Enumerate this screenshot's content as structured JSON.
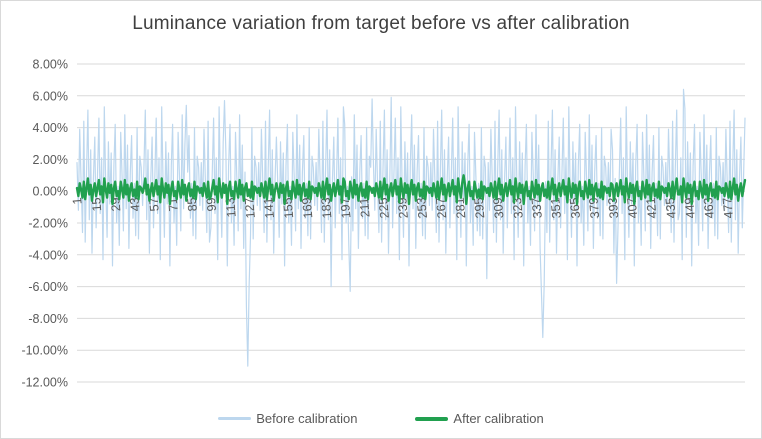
{
  "chart_data": {
    "type": "line",
    "title": "Luminance variation from target before vs after calibration",
    "xlabel": "",
    "ylabel": "",
    "units": "percent",
    "n_points": 490,
    "x_start": 1,
    "x_tick_step": 14,
    "x_tick_labels": [
      1,
      15,
      29,
      43,
      57,
      71,
      85,
      99,
      113,
      127,
      141,
      155,
      169,
      183,
      197,
      211,
      225,
      239,
      253,
      267,
      281,
      295,
      309,
      323,
      337,
      351,
      365,
      379,
      393,
      407,
      421,
      435,
      449,
      463,
      477
    ],
    "ylim": [
      -12,
      8
    ],
    "y_ticks": [
      {
        "value": 8,
        "label": "8.00%"
      },
      {
        "value": 6,
        "label": "6.00%"
      },
      {
        "value": 4,
        "label": "4.00%"
      },
      {
        "value": 2,
        "label": "2.00%"
      },
      {
        "value": 0,
        "label": "0.00%"
      },
      {
        "value": -2,
        "label": "-2.00%"
      },
      {
        "value": -4,
        "label": "-4.00%"
      },
      {
        "value": -6,
        "label": "-6.00%"
      },
      {
        "value": -8,
        "label": "-8.00%"
      },
      {
        "value": -10,
        "label": "-10.00%"
      },
      {
        "value": -12,
        "label": "-12.00%"
      }
    ],
    "grid": true,
    "gridline_color": "#d9d9d9",
    "legend_position": "bottom",
    "text_color": "#595959",
    "title_color": "#3f3f3f",
    "series": [
      {
        "name": "Before calibration",
        "color": "#bdd7ee",
        "stroke_width": 1.2,
        "values": [
          1.8,
          -1.2,
          3.9,
          0.6,
          -2.6,
          4.4,
          -3.2,
          1.4,
          5.1,
          -1.8,
          2.6,
          -3.9,
          0.8,
          3.4,
          -2.3,
          1.0,
          4.6,
          -1.4,
          2.1,
          -4.3,
          5.3,
          0.4,
          -2.9,
          3.1,
          -0.8,
          2.4,
          -4.7,
          1.6,
          4.2,
          -2.0,
          0.3,
          -3.4,
          3.7,
          0.9,
          -2.5,
          4.8,
          -1.1,
          2.9,
          -3.6,
          1.2,
          3.5,
          -1.7,
          0.5,
          -2.8,
          4.0,
          -3.0,
          2.2,
          1.5,
          -0.9,
          1.4,
          5.1,
          -1.8,
          2.6,
          -3.9,
          0.8,
          3.4,
          -2.3,
          1.0,
          4.6,
          -1.4,
          2.1,
          -4.3,
          5.3,
          0.4,
          -2.9,
          3.1,
          -0.8,
          2.4,
          -4.7,
          1.6,
          4.2,
          -2.0,
          0.3,
          -3.4,
          3.7,
          0.9,
          -2.5,
          4.8,
          -1.1,
          2.9,
          5.4,
          1.2,
          3.5,
          -1.7,
          0.5,
          -2.8,
          4.0,
          -3.0,
          2.2,
          1.5,
          -0.9,
          1.8,
          -1.2,
          3.9,
          0.6,
          -2.6,
          4.4,
          -3.2,
          -2.3,
          1.0,
          4.6,
          -1.4,
          2.1,
          -4.3,
          5.3,
          0.4,
          -2.9,
          3.1,
          5.7,
          2.4,
          -4.7,
          1.6,
          4.2,
          -2.0,
          0.3,
          -3.4,
          3.7,
          0.9,
          -2.5,
          4.8,
          -1.1,
          2.9,
          -3.6,
          1.2,
          -7.2,
          -11.0,
          -6.0,
          -2.8,
          4.0,
          -3.0,
          2.2,
          1.5,
          -0.9,
          1.8,
          -1.2,
          3.9,
          0.6,
          -2.6,
          4.4,
          -3.2,
          1.4,
          5.1,
          -1.8,
          2.6,
          -3.9,
          0.8,
          3.4,
          0.4,
          -2.9,
          3.1,
          -0.8,
          2.4,
          -4.7,
          1.6,
          4.2,
          -2.0,
          0.3,
          -3.4,
          3.7,
          0.9,
          -2.5,
          4.8,
          -1.1,
          2.9,
          -3.6,
          1.2,
          3.5,
          -1.7,
          0.5,
          -2.8,
          4.0,
          -3.0,
          2.2,
          1.5,
          -0.9,
          1.8,
          -1.2,
          3.9,
          0.6,
          -2.6,
          4.4,
          -3.2,
          1.4,
          5.1,
          -1.8,
          2.6,
          -6.0,
          0.8,
          3.4,
          -2.3,
          1.0,
          4.6,
          -1.4,
          2.1,
          -4.3,
          5.3,
          4.2,
          -2.0,
          0.3,
          -3.4,
          -6.3,
          0.9,
          -2.5,
          4.8,
          -1.1,
          2.9,
          -3.6,
          1.2,
          3.5,
          -1.7,
          0.5,
          -2.8,
          4.0,
          -3.0,
          2.2,
          1.5,
          5.8,
          1.8,
          -1.2,
          3.9,
          0.6,
          -2.6,
          4.4,
          -3.2,
          1.4,
          5.1,
          -1.8,
          2.6,
          -3.9,
          0.8,
          5.9,
          -2.3,
          1.0,
          4.6,
          -1.4,
          2.1,
          -4.3,
          5.3,
          0.4,
          -2.9,
          3.1,
          -0.8,
          2.4,
          -4.7,
          1.6,
          4.8,
          -1.1,
          2.9,
          -3.6,
          1.2,
          3.5,
          -1.7,
          0.5,
          -2.8,
          4.0,
          -3.0,
          2.2,
          1.5,
          -0.9,
          1.8,
          -1.2,
          3.9,
          0.6,
          -2.6,
          4.4,
          -3.2,
          1.4,
          5.1,
          -1.8,
          2.6,
          -3.9,
          0.8,
          3.4,
          -2.3,
          1.0,
          4.6,
          -1.4,
          2.1,
          -4.3,
          5.3,
          0.4,
          -2.9,
          3.1,
          -0.8,
          2.4,
          -4.7,
          1.6,
          4.2,
          -2.0,
          0.3,
          -3.4,
          3.7,
          0.9,
          -2.5,
          0.5,
          -2.8,
          4.0,
          -3.0,
          2.2,
          1.5,
          -5.5,
          1.8,
          -1.2,
          3.9,
          0.6,
          -2.6,
          4.4,
          -3.2,
          1.4,
          5.1,
          -1.8,
          2.6,
          -3.9,
          0.8,
          3.4,
          -2.3,
          1.0,
          4.6,
          -1.4,
          2.1,
          -4.3,
          5.3,
          0.4,
          -2.9,
          3.1,
          -0.8,
          2.4,
          -4.7,
          1.6,
          4.2,
          -2.0,
          0.3,
          -3.4,
          3.7,
          0.9,
          -2.5,
          4.8,
          -1.1,
          2.9,
          -3.6,
          -6.5,
          -9.2,
          -5.8,
          0.6,
          -2.6,
          4.4,
          -3.2,
          1.4,
          5.1,
          -1.8,
          2.6,
          -3.9,
          0.8,
          3.4,
          -2.3,
          1.0,
          4.6,
          -1.4,
          2.1,
          -4.3,
          5.3,
          0.4,
          -2.9,
          3.1,
          -0.8,
          2.4,
          -4.7,
          1.6,
          4.2,
          -2.0,
          0.3,
          -3.4,
          3.7,
          0.9,
          -2.5,
          4.8,
          -1.1,
          2.9,
          -3.6,
          1.2,
          3.5,
          -1.7,
          0.5,
          -2.8,
          4.0,
          -3.0,
          2.2,
          1.5,
          -0.9,
          1.8,
          -1.2,
          3.9,
          2.6,
          -3.9,
          0.8,
          -5.8,
          -2.3,
          1.0,
          4.6,
          -1.4,
          2.1,
          -4.3,
          5.3,
          0.4,
          -2.9,
          3.1,
          -0.8,
          2.4,
          -4.7,
          1.6,
          4.2,
          -2.0,
          0.3,
          -3.4,
          3.7,
          0.9,
          -2.5,
          4.8,
          -1.1,
          2.9,
          -3.6,
          1.2,
          3.5,
          -1.7,
          0.5,
          -2.8,
          4.0,
          -3.0,
          2.2,
          1.5,
          -0.9,
          1.8,
          -1.2,
          3.9,
          0.6,
          -2.6,
          4.4,
          -3.2,
          1.4,
          5.1,
          -1.8,
          -1.4,
          2.1,
          -4.3,
          6.4,
          5.2,
          -2.9,
          3.1,
          -0.8,
          2.4,
          -4.7,
          1.6,
          4.2,
          -2.0,
          0.3,
          -3.4,
          3.7,
          0.9,
          -2.5,
          4.8,
          -1.1,
          2.9,
          -3.6,
          1.2,
          3.5,
          -1.7,
          0.5,
          -2.8,
          4.0,
          -3.0,
          2.2,
          1.5,
          -0.9,
          1.8,
          -1.2,
          3.9,
          0.6,
          -2.6,
          4.4,
          -3.2,
          1.4,
          5.1,
          -1.8,
          2.6,
          -3.9,
          0.8,
          3.4,
          -2.3,
          1.0,
          4.6
        ]
      },
      {
        "name": "After calibration",
        "color": "#21a04f",
        "stroke_width": 2.4,
        "values": [
          0.2,
          -0.3,
          0.5,
          0.1,
          -0.4,
          0.6,
          -0.5,
          0.2,
          0.8,
          -0.2,
          0.4,
          -0.6,
          0.1,
          0.5,
          -0.3,
          0.2,
          0.7,
          -0.2,
          0.3,
          -0.7,
          0.8,
          0.1,
          -0.4,
          0.5,
          -0.1,
          0.4,
          -0.8,
          0.2,
          0.6,
          -0.3,
          0.0,
          -0.5,
          0.6,
          0.1,
          -0.4,
          0.7,
          -0.2,
          0.4,
          -0.6,
          0.2,
          0.5,
          -0.3,
          0.1,
          -0.4,
          0.6,
          -0.5,
          0.3,
          0.2,
          -0.1,
          0.2,
          0.8,
          -0.2,
          0.4,
          -0.6,
          0.1,
          0.5,
          -0.3,
          0.2,
          0.7,
          -0.2,
          0.3,
          -0.7,
          0.8,
          0.1,
          -0.4,
          0.5,
          -0.1,
          0.4,
          -0.8,
          0.2,
          0.6,
          -0.3,
          0.0,
          -0.5,
          0.6,
          0.1,
          -0.4,
          0.7,
          -0.2,
          0.4,
          -0.6,
          0.2,
          0.5,
          -0.3,
          0.1,
          -0.4,
          0.6,
          -0.5,
          0.3,
          0.2,
          -0.1,
          0.2,
          -0.3,
          0.5,
          0.1,
          -0.4,
          0.6,
          -0.5,
          -0.3,
          0.2,
          0.7,
          -0.2,
          0.3,
          -0.7,
          0.8,
          0.1,
          -0.4,
          0.5,
          -0.1,
          0.4,
          -0.8,
          0.2,
          0.6,
          -0.3,
          0.0,
          -0.5,
          0.6,
          0.1,
          -0.4,
          0.7,
          -0.2,
          0.4,
          -0.6,
          0.2,
          0.5,
          -0.3,
          0.1,
          -0.4,
          0.6,
          -0.5,
          0.3,
          0.2,
          -0.1,
          0.2,
          -0.3,
          0.5,
          0.1,
          -0.4,
          0.6,
          -0.5,
          0.2,
          0.8,
          -0.2,
          0.4,
          -0.6,
          0.1,
          0.5,
          0.1,
          -0.4,
          0.5,
          -0.1,
          0.4,
          -0.8,
          0.2,
          0.6,
          -0.3,
          0.0,
          -0.5,
          0.6,
          0.1,
          -0.4,
          0.7,
          -0.2,
          0.4,
          -0.6,
          0.2,
          0.5,
          -0.3,
          0.1,
          -0.4,
          0.6,
          -0.5,
          0.3,
          0.2,
          -0.1,
          0.2,
          -0.3,
          0.5,
          0.1,
          -0.4,
          0.6,
          -0.5,
          0.2,
          0.8,
          -0.2,
          0.4,
          -0.6,
          0.1,
          0.5,
          -0.3,
          0.2,
          0.7,
          -0.2,
          0.3,
          -0.7,
          0.8,
          0.6,
          -0.3,
          0.0,
          -0.5,
          0.6,
          0.1,
          -0.4,
          0.7,
          -0.2,
          0.4,
          -0.6,
          0.2,
          0.5,
          -0.3,
          0.1,
          -0.4,
          0.6,
          -0.5,
          0.3,
          0.2,
          -0.1,
          0.2,
          -0.3,
          0.5,
          0.1,
          -0.4,
          0.6,
          -0.5,
          0.2,
          0.8,
          -0.2,
          0.4,
          -0.6,
          0.1,
          0.5,
          -0.3,
          0.2,
          0.7,
          -0.2,
          0.3,
          -0.7,
          0.8,
          0.1,
          -0.4,
          0.5,
          -0.1,
          0.4,
          -0.8,
          0.2,
          0.7,
          -0.2,
          0.4,
          -0.6,
          0.2,
          0.5,
          -0.3,
          0.1,
          -0.4,
          0.6,
          -0.5,
          0.3,
          0.2,
          -0.1,
          0.2,
          -0.3,
          0.5,
          0.1,
          -0.4,
          0.6,
          -0.5,
          0.2,
          0.8,
          -0.2,
          0.4,
          -0.6,
          0.1,
          0.5,
          -0.3,
          0.2,
          0.7,
          -0.2,
          0.3,
          -0.7,
          0.8,
          0.1,
          -0.4,
          0.5,
          1.0,
          0.4,
          -0.8,
          0.2,
          0.6,
          -0.3,
          0.0,
          -0.5,
          0.6,
          0.1,
          -0.4,
          0.1,
          -0.4,
          0.6,
          -0.5,
          0.3,
          0.2,
          -0.1,
          0.2,
          -0.3,
          0.5,
          0.1,
          -0.4,
          0.6,
          -0.5,
          0.2,
          0.8,
          -0.2,
          0.4,
          -0.6,
          0.1,
          0.5,
          -0.3,
          0.2,
          0.7,
          -0.2,
          0.3,
          -0.7,
          0.8,
          0.1,
          -0.4,
          0.5,
          -0.1,
          0.4,
          -0.8,
          0.2,
          0.6,
          -0.3,
          0.0,
          -0.5,
          0.6,
          0.1,
          -0.4,
          0.7,
          -0.2,
          0.4,
          -0.6,
          0.2,
          0.5,
          -0.3,
          0.1,
          -0.4,
          0.6,
          -0.5,
          0.2,
          0.8,
          -0.2,
          0.4,
          -0.6,
          0.1,
          0.5,
          -0.3,
          0.2,
          0.7,
          -0.2,
          0.3,
          -0.7,
          0.8,
          0.1,
          -0.4,
          0.5,
          -0.1,
          0.4,
          -0.8,
          0.2,
          0.6,
          -0.3,
          0.0,
          -0.5,
          0.6,
          0.1,
          -0.4,
          0.7,
          -0.2,
          0.4,
          -0.6,
          0.2,
          0.5,
          -0.3,
          0.1,
          -0.4,
          0.6,
          -0.5,
          0.3,
          0.2,
          -0.1,
          0.2,
          -0.3,
          0.5,
          0.4,
          -0.6,
          0.1,
          0.5,
          -0.3,
          0.2,
          0.7,
          -0.2,
          0.3,
          -0.7,
          0.8,
          0.1,
          -0.4,
          0.5,
          -0.1,
          0.4,
          -0.8,
          0.2,
          0.6,
          -0.3,
          0.0,
          -0.5,
          0.6,
          0.1,
          -0.4,
          0.7,
          -0.2,
          0.4,
          -0.6,
          0.2,
          0.5,
          -0.3,
          0.1,
          -0.4,
          0.6,
          -0.5,
          0.3,
          0.2,
          -0.1,
          0.2,
          -0.3,
          0.5,
          0.1,
          -0.4,
          0.6,
          -0.5,
          0.2,
          0.8,
          -0.2,
          -0.2,
          0.3,
          -0.7,
          0.8,
          0.1,
          -0.4,
          0.5,
          -0.1,
          0.4,
          -0.8,
          0.2,
          0.6,
          -0.3,
          0.0,
          -0.5,
          0.6,
          0.1,
          -0.4,
          0.7,
          -0.2,
          0.4,
          -0.6,
          0.2,
          0.5,
          -0.3,
          0.1,
          -0.4,
          0.6,
          -0.5,
          0.3,
          0.2,
          -0.1,
          0.2,
          -0.3,
          0.5,
          0.1,
          -0.4,
          0.6,
          -0.5,
          0.2,
          0.8,
          -0.2,
          0.4,
          -0.6,
          0.1,
          0.5,
          -0.3,
          0.2,
          0.7
        ]
      }
    ]
  }
}
